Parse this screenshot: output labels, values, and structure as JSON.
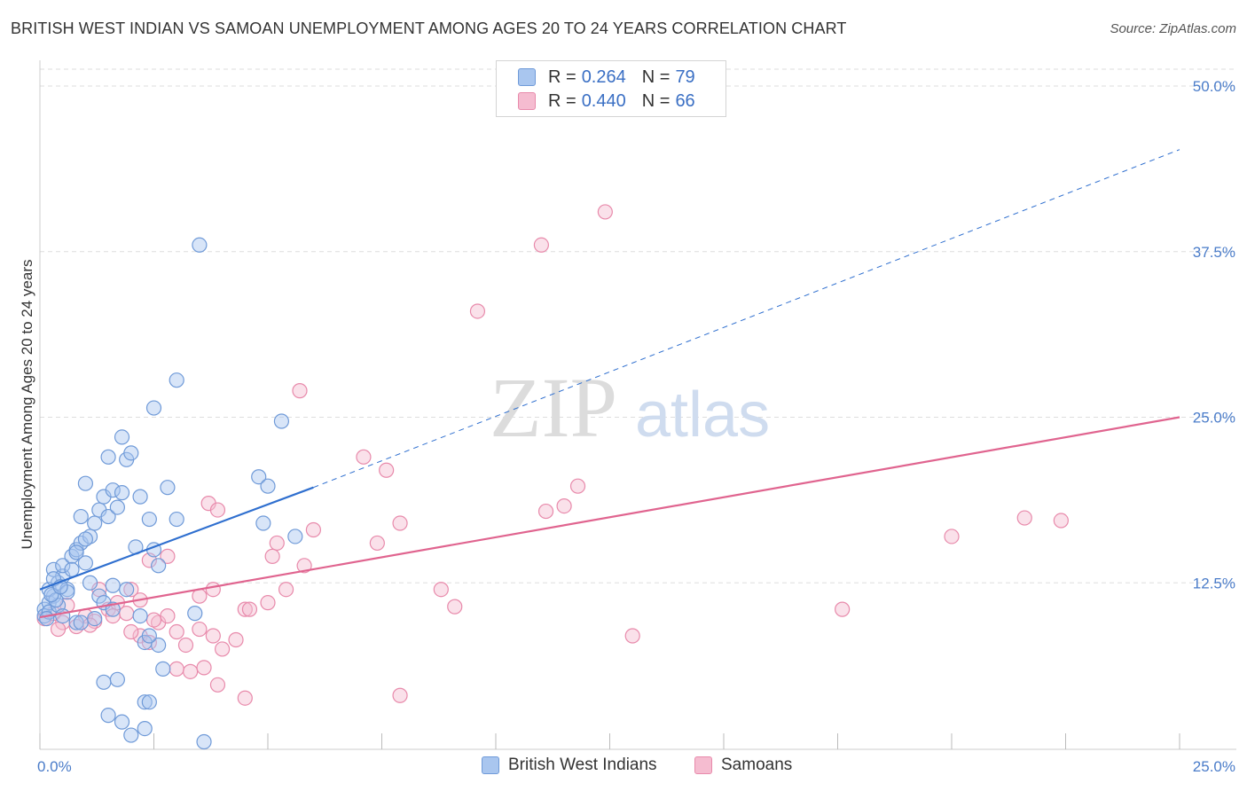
{
  "title": "BRITISH WEST INDIAN VS SAMOAN UNEMPLOYMENT AMONG AGES 20 TO 24 YEARS CORRELATION CHART",
  "source": "Source: ZipAtlas.com",
  "watermark": {
    "zip": "ZIP",
    "atlas": "atlas"
  },
  "legend": {
    "rows": [
      {
        "r_label": "R =",
        "r_value": "0.264",
        "n_label": "N =",
        "n_value": "79"
      },
      {
        "r_label": "R =",
        "r_value": "0.440",
        "n_label": "N =",
        "n_value": "66"
      }
    ]
  },
  "bottom_legend": {
    "series1": "British West Indians",
    "series2": "Samoans"
  },
  "colors": {
    "blue_fill": "#a9c6ef",
    "blue_stroke": "#6f9ad8",
    "blue_line": "#2f6fcf",
    "pink_fill": "#f5bcd0",
    "pink_stroke": "#e88aab",
    "pink_line": "#e0648f",
    "grid": "#dddddd",
    "tick_text": "#4a7cc9"
  },
  "chart_data": {
    "type": "scatter",
    "title": "BRITISH WEST INDIAN VS SAMOAN UNEMPLOYMENT AMONG AGES 20 TO 24 YEARS CORRELATION CHART",
    "xlabel": "",
    "ylabel": "Unemployment Among Ages 20 to 24 years",
    "xlim": [
      0,
      25
    ],
    "ylim": [
      0,
      50
    ],
    "x_tick_labels": [
      "0.0%",
      "25.0%"
    ],
    "y_ticks": [
      12.5,
      25.0,
      37.5,
      50.0
    ],
    "y_tick_labels": [
      "12.5%",
      "25.0%",
      "37.5%",
      "50.0%"
    ],
    "series": [
      {
        "name": "British West Indians",
        "R": 0.264,
        "N": 79,
        "trend": {
          "x0": 0,
          "y0": 12.0,
          "x1": 6.0,
          "y1": 19.7,
          "dash_to_x": 25,
          "dash_to_y": 45.2
        },
        "points": [
          [
            0.1,
            10.5
          ],
          [
            0.2,
            11.0
          ],
          [
            0.1,
            10.0
          ],
          [
            0.3,
            11.5
          ],
          [
            0.2,
            12.0
          ],
          [
            0.4,
            12.5
          ],
          [
            0.3,
            13.5
          ],
          [
            0.5,
            13.0
          ],
          [
            0.6,
            12.0
          ],
          [
            0.5,
            13.8
          ],
          [
            0.7,
            14.5
          ],
          [
            0.8,
            15.0
          ],
          [
            0.9,
            15.5
          ],
          [
            1.0,
            14.0
          ],
          [
            1.1,
            16.0
          ],
          [
            0.9,
            17.5
          ],
          [
            1.2,
            17.0
          ],
          [
            1.3,
            18.0
          ],
          [
            1.5,
            17.5
          ],
          [
            1.7,
            18.2
          ],
          [
            1.4,
            19.0
          ],
          [
            1.6,
            19.5
          ],
          [
            1.8,
            19.3
          ],
          [
            1.0,
            20.0
          ],
          [
            1.5,
            22.0
          ],
          [
            1.9,
            21.8
          ],
          [
            2.0,
            22.3
          ],
          [
            1.8,
            23.5
          ],
          [
            2.2,
            19.0
          ],
          [
            2.4,
            17.3
          ],
          [
            2.5,
            15.0
          ],
          [
            2.6,
            13.8
          ],
          [
            2.1,
            15.2
          ],
          [
            1.3,
            11.5
          ],
          [
            1.4,
            11.0
          ],
          [
            1.6,
            10.5
          ],
          [
            1.2,
            9.8
          ],
          [
            0.8,
            9.5
          ],
          [
            1.9,
            12.0
          ],
          [
            2.3,
            8.0
          ],
          [
            2.6,
            7.8
          ],
          [
            2.7,
            6.0
          ],
          [
            1.4,
            5.0
          ],
          [
            1.7,
            5.2
          ],
          [
            2.3,
            3.5
          ],
          [
            2.4,
            3.5
          ],
          [
            1.5,
            2.5
          ],
          [
            1.8,
            2.0
          ],
          [
            2.0,
            1.0
          ],
          [
            2.3,
            1.5
          ],
          [
            3.5,
            38.0
          ],
          [
            3.0,
            27.8
          ],
          [
            2.5,
            25.7
          ],
          [
            5.3,
            24.7
          ],
          [
            4.8,
            20.5
          ],
          [
            5.0,
            19.8
          ],
          [
            4.9,
            17.0
          ],
          [
            5.6,
            16.0
          ],
          [
            3.4,
            10.2
          ],
          [
            3.6,
            0.5
          ],
          [
            2.8,
            19.7
          ],
          [
            3.0,
            17.3
          ],
          [
            2.2,
            10.0
          ],
          [
            0.2,
            10.3
          ],
          [
            0.4,
            10.8
          ],
          [
            0.6,
            11.8
          ],
          [
            0.3,
            12.8
          ],
          [
            0.7,
            13.5
          ],
          [
            1.0,
            15.8
          ],
          [
            1.1,
            12.5
          ],
          [
            0.5,
            10.0
          ],
          [
            0.9,
            9.5
          ],
          [
            0.15,
            9.8
          ],
          [
            0.35,
            11.2
          ],
          [
            1.6,
            12.3
          ],
          [
            2.4,
            8.5
          ],
          [
            0.25,
            11.6
          ],
          [
            0.45,
            12.2
          ],
          [
            0.8,
            14.8
          ]
        ]
      },
      {
        "name": "Samoans",
        "R": 0.44,
        "N": 66,
        "trend": {
          "x0": 0,
          "y0": 9.9,
          "x1": 25,
          "y1": 25.0
        },
        "points": [
          [
            0.1,
            9.8
          ],
          [
            0.3,
            10.2
          ],
          [
            0.5,
            9.5
          ],
          [
            0.8,
            9.2
          ],
          [
            1.0,
            10.0
          ],
          [
            1.2,
            9.6
          ],
          [
            1.5,
            10.5
          ],
          [
            1.7,
            11.0
          ],
          [
            1.9,
            10.2
          ],
          [
            2.2,
            8.5
          ],
          [
            2.4,
            8.0
          ],
          [
            2.6,
            9.5
          ],
          [
            2.8,
            10.0
          ],
          [
            3.0,
            8.8
          ],
          [
            3.2,
            7.8
          ],
          [
            3.5,
            9.0
          ],
          [
            3.8,
            8.5
          ],
          [
            4.0,
            7.5
          ],
          [
            4.3,
            8.2
          ],
          [
            4.5,
            10.5
          ],
          [
            2.8,
            14.5
          ],
          [
            2.4,
            14.2
          ],
          [
            2.0,
            12.0
          ],
          [
            3.5,
            11.5
          ],
          [
            3.8,
            12.0
          ],
          [
            4.6,
            10.5
          ],
          [
            5.0,
            11.0
          ],
          [
            5.4,
            12.0
          ],
          [
            5.8,
            13.8
          ],
          [
            6.0,
            16.5
          ],
          [
            5.2,
            15.5
          ],
          [
            5.1,
            14.5
          ],
          [
            3.7,
            18.5
          ],
          [
            3.9,
            18.0
          ],
          [
            5.7,
            27.0
          ],
          [
            7.1,
            22.0
          ],
          [
            7.6,
            21.0
          ],
          [
            7.9,
            17.0
          ],
          [
            7.4,
            15.5
          ],
          [
            8.8,
            12.0
          ],
          [
            9.1,
            10.7
          ],
          [
            9.6,
            33.0
          ],
          [
            11.0,
            38.0
          ],
          [
            12.4,
            40.5
          ],
          [
            11.1,
            17.9
          ],
          [
            11.5,
            18.3
          ],
          [
            11.8,
            19.8
          ],
          [
            13.0,
            8.5
          ],
          [
            17.6,
            10.5
          ],
          [
            20.0,
            16.0
          ],
          [
            21.6,
            17.4
          ],
          [
            22.4,
            17.2
          ],
          [
            3.0,
            6.0
          ],
          [
            3.3,
            5.8
          ],
          [
            3.6,
            6.1
          ],
          [
            3.9,
            4.8
          ],
          [
            4.5,
            3.8
          ],
          [
            7.9,
            4.0
          ],
          [
            0.4,
            9.0
          ],
          [
            1.1,
            9.3
          ],
          [
            1.3,
            12.0
          ],
          [
            1.6,
            10.0
          ],
          [
            2.0,
            8.8
          ],
          [
            2.2,
            11.2
          ],
          [
            2.5,
            9.7
          ],
          [
            0.6,
            10.8
          ]
        ]
      }
    ]
  }
}
